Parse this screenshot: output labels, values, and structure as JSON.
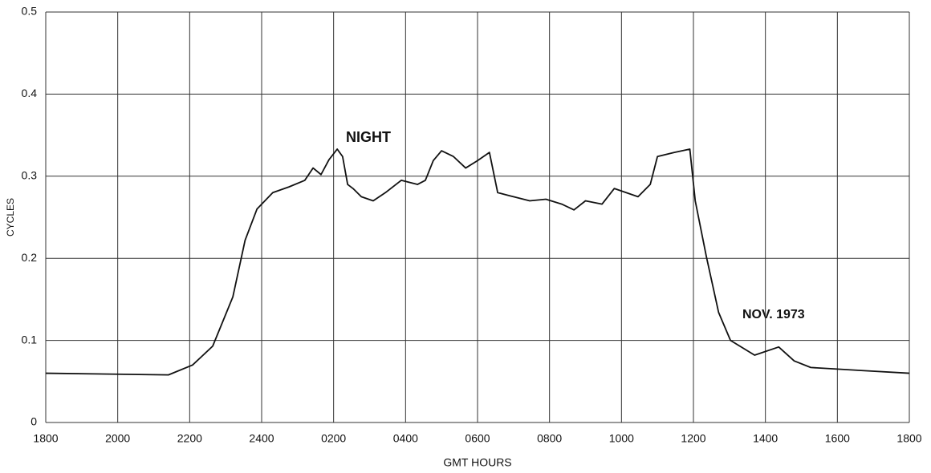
{
  "chart_data": {
    "type": "line",
    "x_label": "GMT HOURS",
    "y_label": "CYCLES",
    "annotations": [
      "NIGHT",
      "NOV. 1973"
    ],
    "x": [
      0,
      3.41,
      4.08,
      4.64,
      5.2,
      5.54,
      5.87,
      6.31,
      6.76,
      7.2,
      7.43,
      7.65,
      7.87,
      8.1,
      8.25,
      8.39,
      8.54,
      8.77,
      9.1,
      9.44,
      9.88,
      10.33,
      10.55,
      10.77,
      11.0,
      11.33,
      11.67,
      12.0,
      12.33,
      12.56,
      13.0,
      13.45,
      13.9,
      14.34,
      14.68,
      15.0,
      15.46,
      15.8,
      16.13,
      16.46,
      16.8,
      17.0,
      17.47,
      17.9,
      18.05,
      18.36,
      18.7,
      19.03,
      19.7,
      20.37,
      20.8,
      21.26,
      22.8,
      24
    ],
    "series": [
      {
        "color": "#111111",
        "values": [
          0.06,
          0.058,
          0.07,
          0.093,
          0.153,
          0.222,
          0.26,
          0.28,
          0.287,
          0.295,
          0.31,
          0.302,
          0.32,
          0.333,
          0.324,
          0.29,
          0.285,
          0.275,
          0.27,
          0.28,
          0.295,
          0.29,
          0.295,
          0.319,
          0.331,
          0.324,
          0.31,
          0.319,
          0.329,
          0.28,
          0.275,
          0.27,
          0.272,
          0.266,
          0.259,
          0.27,
          0.266,
          0.285,
          0.28,
          0.275,
          0.29,
          0.324,
          0.329,
          0.333,
          0.27,
          0.202,
          0.134,
          0.1,
          0.082,
          0.092,
          0.075,
          0.067,
          0.063,
          0.06
        ]
      }
    ],
    "xlim": [
      0,
      24
    ],
    "xticks": [
      {
        "value": 0,
        "label": "1800"
      },
      {
        "value": 2,
        "label": "2000"
      },
      {
        "value": 4,
        "label": "2200"
      },
      {
        "value": 6,
        "label": "2400"
      },
      {
        "value": 8,
        "label": "0200"
      },
      {
        "value": 10,
        "label": "0400"
      },
      {
        "value": 12,
        "label": "0600"
      },
      {
        "value": 14,
        "label": "0800"
      },
      {
        "value": 16,
        "label": "1000"
      },
      {
        "value": 18,
        "label": "1200"
      },
      {
        "value": 20,
        "label": "1400"
      },
      {
        "value": 22,
        "label": "1600"
      },
      {
        "value": 24,
        "label": "1800"
      }
    ],
    "ylim": [
      0,
      0.5
    ],
    "yticks": [
      0,
      0.1,
      0.2,
      0.3,
      0.4,
      0.5
    ],
    "grid": true
  }
}
